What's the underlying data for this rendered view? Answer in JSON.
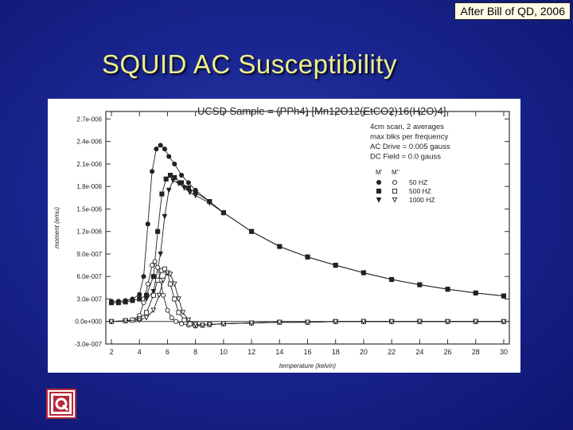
{
  "slide": {
    "credit": "After Bill of QD, 2006",
    "title": "SQUID AC Susceptibility"
  },
  "chart_data": {
    "type": "scatter",
    "title": "UCSD Sample = (PPh4) [Mn12O12(EtCO2)16(H2O)4]",
    "annotations": [
      "4cm scan, 2 averages",
      "max blks per frequency",
      "AC Drive = 0.005 gauss",
      "DC Field = 0.0 gauss"
    ],
    "xlabel": "temperature (kelvin)",
    "ylabel": "moment (emu)",
    "xlim": [
      1.6,
      30.4
    ],
    "ylim": [
      -3e-07,
      2.8e-06
    ],
    "xticks": [
      2,
      4,
      6,
      8,
      10,
      12,
      14,
      16,
      18,
      20,
      22,
      24,
      26,
      28,
      30
    ],
    "xtick_labels": [
      "2",
      "4",
      "6",
      "8",
      "10",
      "12",
      "14",
      "16",
      "18",
      "20",
      "22",
      "24",
      "26",
      "28",
      "30"
    ],
    "yticks": [
      -3e-07,
      0,
      3e-07,
      6e-07,
      9e-07,
      1.2e-06,
      1.5e-06,
      1.8e-06,
      2.1e-06,
      2.4e-06,
      2.7e-06
    ],
    "ytick_labels": [
      "-3.0e-007",
      "0.0e+000",
      "3.0e-007",
      "6.0e-007",
      "9.0e-007",
      "1.2e-006",
      "1.5e-006",
      "1.8e-006",
      "2.1e-006",
      "2.4e-006",
      "2.7e-006"
    ],
    "legend": {
      "headers": [
        "M'",
        "M''"
      ],
      "entries": [
        "50 HZ",
        "500 HZ",
        "1000 HZ"
      ]
    },
    "series": [
      {
        "name": "50 HZ",
        "component": "M'",
        "marker": "filled-circle",
        "x": [
          2,
          2.5,
          3,
          3.5,
          4,
          4.3,
          4.6,
          4.9,
          5.2,
          5.5,
          5.8,
          6.1,
          6.5,
          7,
          7.5,
          8,
          9,
          10,
          12,
          14,
          16,
          18,
          20,
          22,
          24,
          26,
          28,
          30
        ],
        "y": [
          2.7e-07,
          2.7e-07,
          2.8e-07,
          3e-07,
          3.6e-07,
          6e-07,
          1.3e-06,
          2e-06,
          2.3e-06,
          2.35e-06,
          2.3e-06,
          2.2e-06,
          2.1e-06,
          1.95e-06,
          1.85e-06,
          1.75e-06,
          1.6e-06,
          1.45e-06,
          1.2e-06,
          1e-06,
          8.6e-07,
          7.5e-07,
          6.5e-07,
          5.6e-07,
          4.9e-07,
          4.3e-07,
          3.8e-07,
          3.4e-07
        ]
      },
      {
        "name": "500 HZ",
        "component": "M'",
        "marker": "filled-square",
        "x": [
          2,
          2.5,
          3,
          3.5,
          4,
          4.5,
          5,
          5.3,
          5.6,
          5.9,
          6.2,
          6.5,
          7,
          7.5,
          8,
          9,
          10,
          12,
          14,
          16,
          18,
          20,
          22,
          24,
          26,
          28,
          30
        ],
        "y": [
          2.5e-07,
          2.5e-07,
          2.6e-07,
          2.8e-07,
          3e-07,
          3.5e-07,
          6e-07,
          1.2e-06,
          1.7e-06,
          1.9e-06,
          1.95e-06,
          1.92e-06,
          1.85e-06,
          1.78e-06,
          1.72e-06,
          1.6e-06,
          1.45e-06,
          1.2e-06,
          1e-06,
          8.6e-07,
          7.5e-07,
          6.5e-07,
          5.6e-07,
          4.9e-07,
          4.3e-07,
          3.8e-07,
          3.4e-07
        ]
      },
      {
        "name": "1000 HZ",
        "component": "M'",
        "marker": "filled-triangle",
        "x": [
          4.5,
          5,
          5.5,
          5.8,
          6.1,
          6.4,
          6.8,
          7.2,
          7.6,
          8,
          9,
          10,
          12,
          14,
          16,
          18,
          20,
          22,
          24,
          26,
          28,
          30
        ],
        "y": [
          3e-07,
          4e-07,
          9e-07,
          1.4e-06,
          1.75e-06,
          1.88e-06,
          1.84e-06,
          1.78e-06,
          1.72e-06,
          1.68e-06,
          1.58e-06,
          1.45e-06,
          1.2e-06,
          1e-06,
          8.6e-07,
          7.5e-07,
          6.5e-07,
          5.6e-07,
          4.9e-07,
          4.3e-07,
          3.8e-07,
          3.4e-07
        ]
      },
      {
        "name": "50 HZ",
        "component": "M''",
        "marker": "open-circle",
        "x": [
          2,
          3,
          3.5,
          4,
          4.3,
          4.6,
          4.9,
          5.1,
          5.3,
          5.5,
          5.7,
          6,
          6.3,
          6.6,
          7,
          7.5,
          8,
          8.5,
          9,
          10,
          12,
          14,
          16,
          18,
          20,
          22,
          24,
          26,
          28,
          30
        ],
        "y": [
          0,
          1e-08,
          2e-08,
          8e-08,
          2.5e-07,
          5e-07,
          7.5e-07,
          8e-07,
          7.2e-07,
          5.5e-07,
          3.5e-07,
          1.5e-07,
          5e-08,
          0,
          -3e-08,
          -5e-08,
          -6e-08,
          -5e-08,
          -4e-08,
          -3e-08,
          -2e-08,
          -1e-08,
          -1e-08,
          0,
          0,
          0,
          0,
          0,
          0,
          0
        ]
      },
      {
        "name": "500 HZ",
        "component": "M''",
        "marker": "open-square",
        "x": [
          2,
          3,
          3.5,
          4,
          4.5,
          5,
          5.3,
          5.6,
          5.8,
          6,
          6.2,
          6.5,
          6.8,
          7.2,
          7.6,
          8,
          8.5,
          9,
          10,
          12,
          14,
          16,
          18,
          20,
          22,
          24,
          26,
          28,
          30
        ],
        "y": [
          0,
          1e-08,
          2e-08,
          4e-08,
          1.2e-07,
          3.5e-07,
          5.5e-07,
          6.8e-07,
          7e-07,
          6.5e-07,
          5e-07,
          3e-07,
          1.2e-07,
          2e-08,
          -3e-08,
          -5e-08,
          -5e-08,
          -4e-08,
          -3e-08,
          -2e-08,
          -1e-08,
          -1e-08,
          0,
          0,
          0,
          0,
          0,
          0,
          0
        ]
      },
      {
        "name": "1000 HZ",
        "component": "M''",
        "marker": "open-triangle",
        "x": [
          2,
          3,
          4,
          4.5,
          5,
          5.4,
          5.7,
          6,
          6.2,
          6.5,
          6.8,
          7.1,
          7.5,
          8,
          8.5,
          9,
          10,
          12,
          14,
          16,
          18,
          20,
          22,
          24,
          26,
          28,
          30
        ],
        "y": [
          0,
          1e-08,
          2e-08,
          5e-08,
          1.5e-07,
          3.5e-07,
          5.5e-07,
          6.5e-07,
          6.3e-07,
          5e-07,
          3e-07,
          1.2e-07,
          2e-08,
          -4e-08,
          -5e-08,
          -4e-08,
          -3e-08,
          -2e-08,
          -1e-08,
          -1e-08,
          0,
          0,
          0,
          0,
          0,
          0,
          0
        ]
      }
    ]
  },
  "colors": {
    "background": "#1a2690",
    "title": "#eef08a",
    "credit_bg": "#fffbe6",
    "plot_bg": "#ffffff",
    "ink": "#222222",
    "logo_red": "#b8283a"
  },
  "logo": {
    "icon": "qd-logo-icon",
    "letter": "Q"
  }
}
